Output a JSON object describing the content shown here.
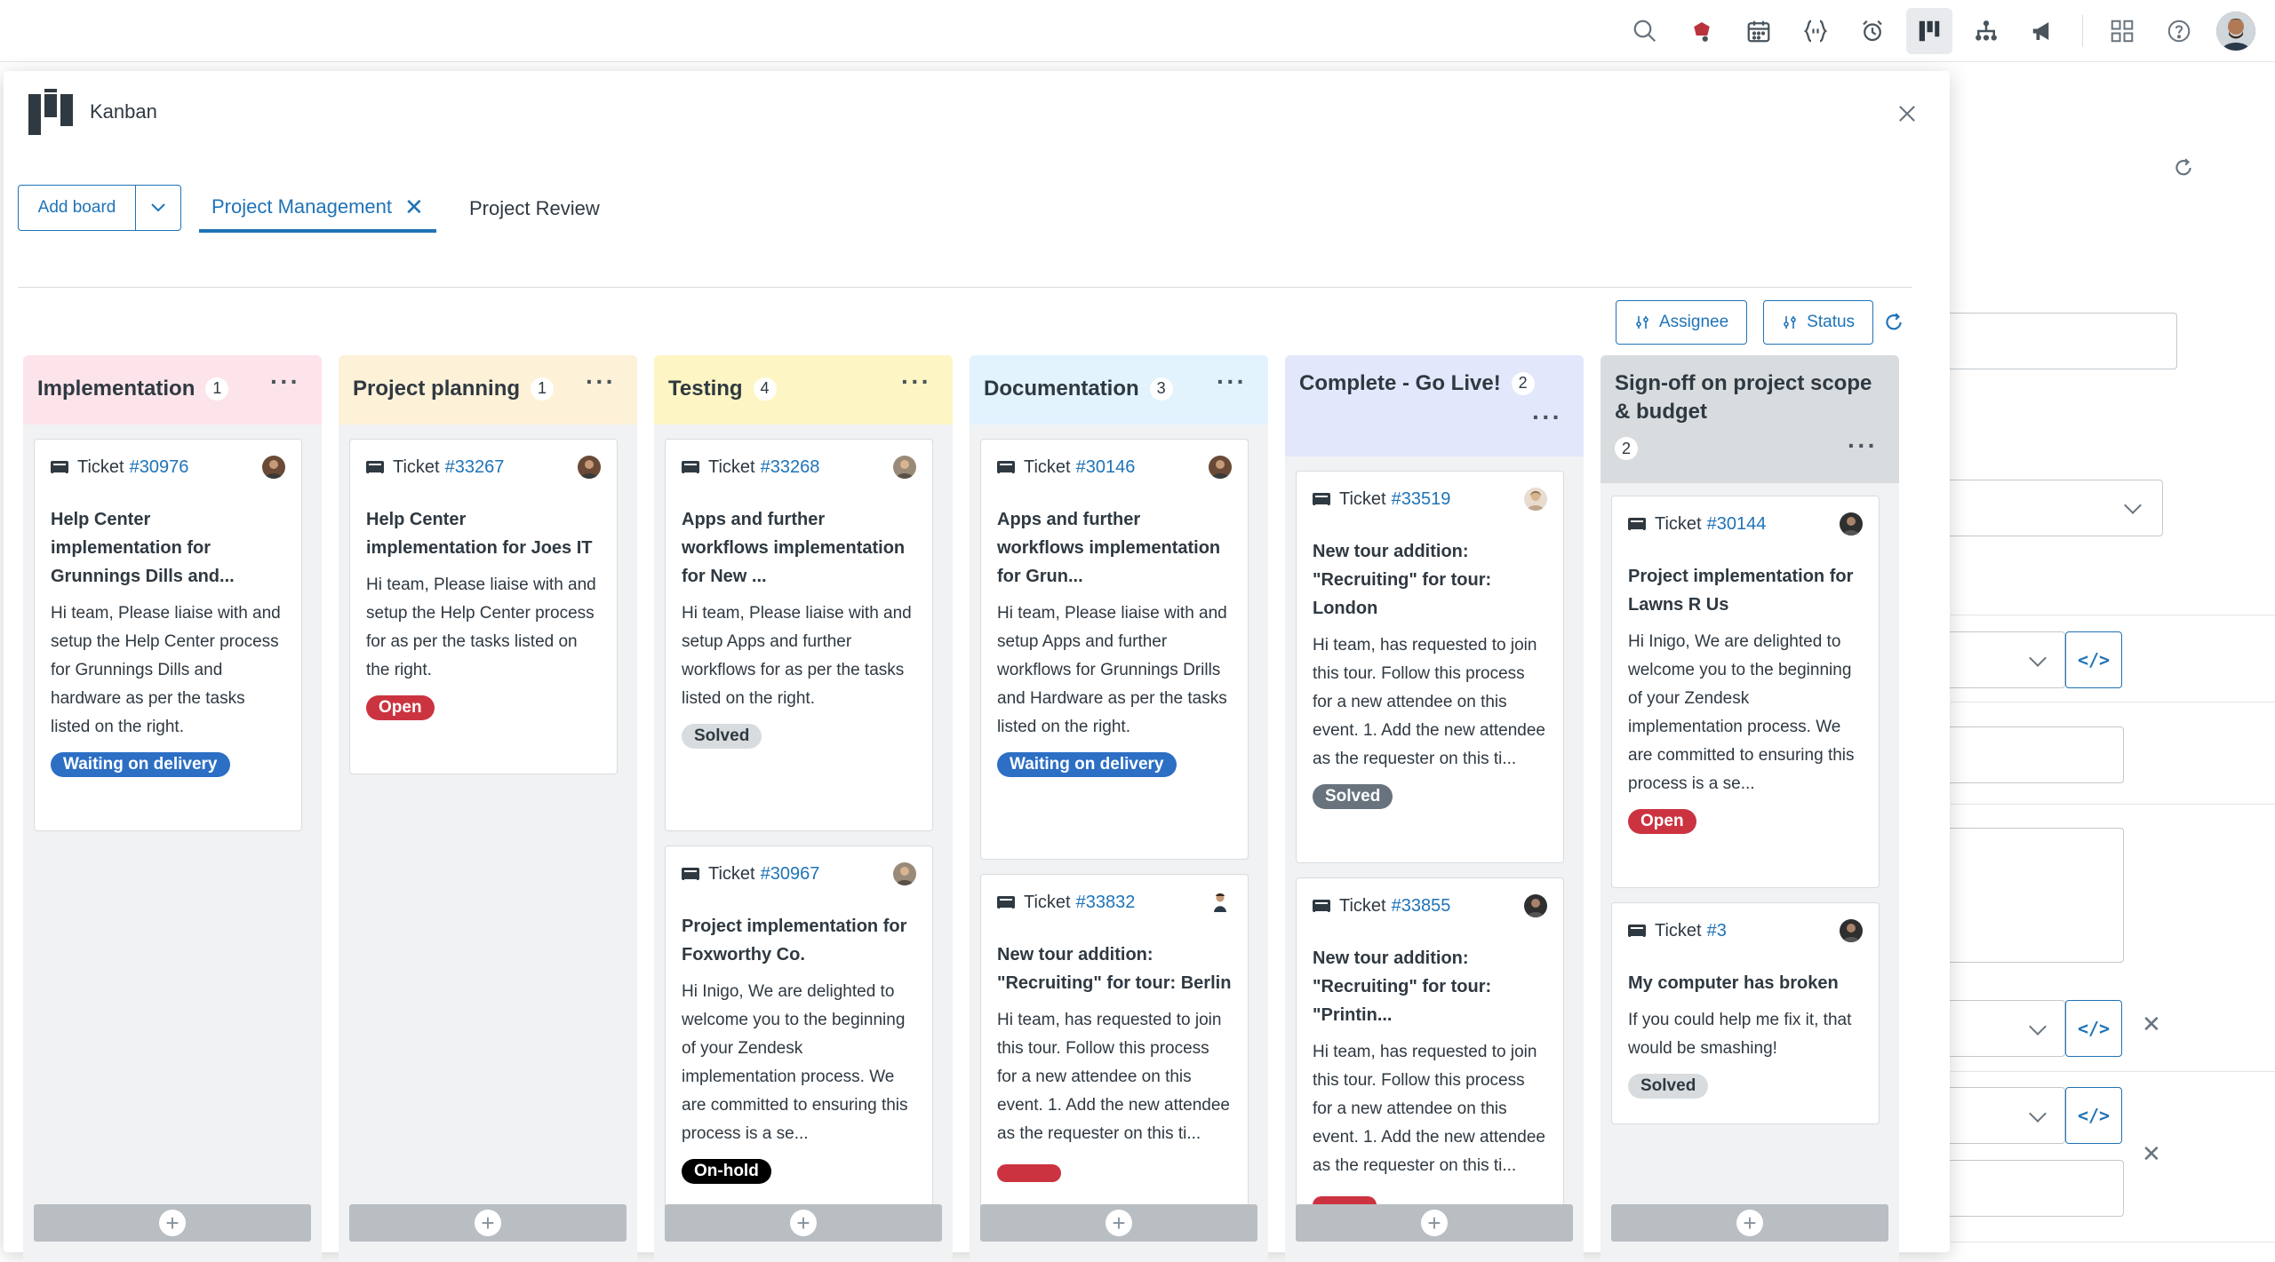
{
  "modal": {
    "title": "Kanban",
    "add_board_label": "Add board",
    "tabs": [
      {
        "label": "Project Management",
        "active": true
      },
      {
        "label": "Project Review",
        "active": false
      }
    ],
    "filters": [
      {
        "label": "Assignee"
      },
      {
        "label": "Status"
      }
    ]
  },
  "topbar": {
    "icons": [
      "search-icon",
      "notification-icon",
      "calendar-icon",
      "code-icon",
      "alarm-icon",
      "kanban-icon",
      "hierarchy-icon",
      "megaphone-icon",
      "apps-grid-icon",
      "help-icon",
      "user-avatar"
    ]
  },
  "colors": {
    "accent": "#1f73b7",
    "implementation": "#fde4ea",
    "project_planning": "#fdf1d8",
    "testing": "#fdf6c4",
    "documentation": "#e2f3fd",
    "complete": "#e3e7fb",
    "signoff": "#d8dcde"
  },
  "columns": [
    {
      "name": "Implementation",
      "count": "1",
      "cards": [
        {
          "ticket_label": "Ticket",
          "number": "#30976",
          "title": "Help Center implementation for Grunnings Dills and...",
          "desc": "Hi team, Please liaise with and setup the Help Center process for Grunnings Dills and hardware as per the tasks listed on the right.",
          "status": "Waiting on delivery"
        }
      ]
    },
    {
      "name": "Project planning",
      "count": "1",
      "cards": [
        {
          "ticket_label": "Ticket",
          "number": "#33267",
          "title": "Help Center implementation for Joes IT",
          "desc": "Hi team, Please liaise with and setup the Help Center process for as per the tasks listed on the right.",
          "status": "Open"
        }
      ]
    },
    {
      "name": "Testing",
      "count": "4",
      "cards": [
        {
          "ticket_label": "Ticket",
          "number": "#33268",
          "title": "Apps and further workflows implementation for New ...",
          "desc": "Hi team, Please liaise with and setup Apps and further workflows for as per the tasks listed on the right.",
          "status": "Solved"
        },
        {
          "ticket_label": "Ticket",
          "number": "#30967",
          "title": "Project implementation for Foxworthy Co.",
          "desc": "Hi Inigo, We are delighted to welcome you to the beginning of your Zendesk implementation process. We are committed to ensuring this process is a se...",
          "status": "On-hold"
        }
      ]
    },
    {
      "name": "Documentation",
      "count": "3",
      "cards": [
        {
          "ticket_label": "Ticket",
          "number": "#30146",
          "title": "Apps and further workflows implementation for Grun...",
          "desc": "Hi team, Please liaise with and setup Apps and further workflows for Grunnings Drills and Hardware as per the tasks listed on the right.",
          "status": "Waiting on delivery"
        },
        {
          "ticket_label": "Ticket",
          "number": "#33832",
          "title": "New tour addition: \"Recruiting\" for tour: Berlin",
          "desc": "Hi team, has requested to join this tour. Follow this process for a new attendee on this event. 1. Add the new attendee as the requester on this ti...",
          "status": ""
        }
      ]
    },
    {
      "name": "Complete - Go Live!",
      "count": "2",
      "cards": [
        {
          "ticket_label": "Ticket",
          "number": "#33519",
          "title": "New tour addition: \"Recruiting\" for tour: London",
          "desc": "Hi team, has requested to join this tour. Follow this process for a new attendee on this event. 1. Add the new attendee as the requester on this ti...",
          "status": "Solved"
        },
        {
          "ticket_label": "Ticket",
          "number": "#33855",
          "title": "New tour addition: \"Recruiting\" for tour: \"Printin...",
          "desc": "Hi team, has requested to join this tour. Follow this process for a new attendee on this event. 1. Add the new attendee as the requester on this ti...",
          "status": ""
        }
      ]
    },
    {
      "name": "Sign-off on project scope & budget",
      "count": "2",
      "cards": [
        {
          "ticket_label": "Ticket",
          "number": "#30144",
          "title": "Project implementation for Lawns R Us",
          "desc": "Hi Inigo, We are delighted to welcome you to the beginning of your Zendesk implementation process. We are committed to ensuring this process is a se...",
          "status": "Open"
        },
        {
          "ticket_label": "Ticket",
          "number": "#3",
          "title": "My computer has broken",
          "desc": "If you could help me fix it, that would be smashing!",
          "status": "Solved"
        }
      ]
    }
  ]
}
